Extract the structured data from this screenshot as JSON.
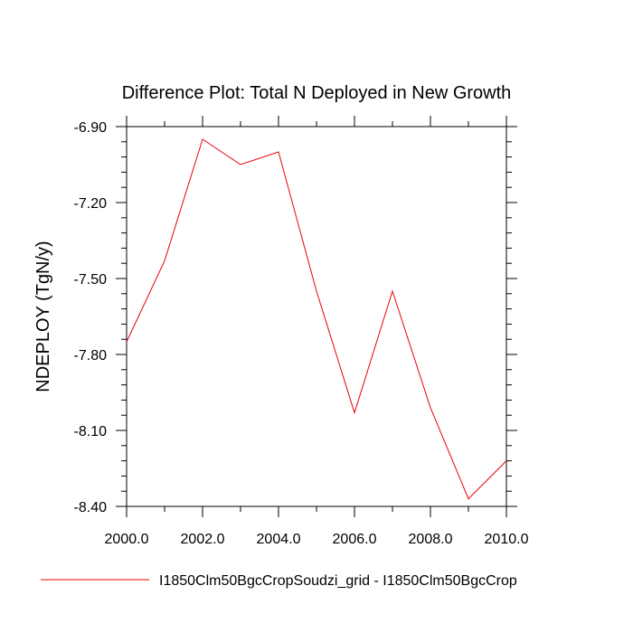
{
  "chart_data": {
    "type": "line",
    "title": "Difference Plot: Total N Deployed in New Growth",
    "xlabel": "",
    "ylabel": "NDEPLOY  (TgN/y)",
    "xlim": [
      2000,
      2010
    ],
    "ylim": [
      -8.4,
      -6.9
    ],
    "x_ticks": [
      2000,
      2002,
      2004,
      2006,
      2008,
      2010
    ],
    "x_tick_labels": [
      "2000.0",
      "2002.0",
      "2004.0",
      "2006.0",
      "2008.0",
      "2010.0"
    ],
    "y_ticks": [
      -6.9,
      -7.2,
      -7.5,
      -7.8,
      -8.1,
      -8.4
    ],
    "y_tick_labels": [
      "-6.90",
      "-7.20",
      "-7.50",
      "-7.80",
      "-8.10",
      "-8.40"
    ],
    "grid": false,
    "legend_position": "bottom",
    "series": [
      {
        "name": "I1850Clm50BgcCropSoudzi_grid - I1850Clm50BgcCrop",
        "color": "#e8000b",
        "x": [
          2000,
          2001,
          2002,
          2003,
          2004,
          2005,
          2006,
          2007,
          2008,
          2009,
          2010
        ],
        "y": [
          -7.75,
          -7.43,
          -6.95,
          -7.05,
          -7.0,
          -7.55,
          -8.03,
          -7.55,
          -8.01,
          -8.37,
          -8.22
        ]
      }
    ]
  }
}
